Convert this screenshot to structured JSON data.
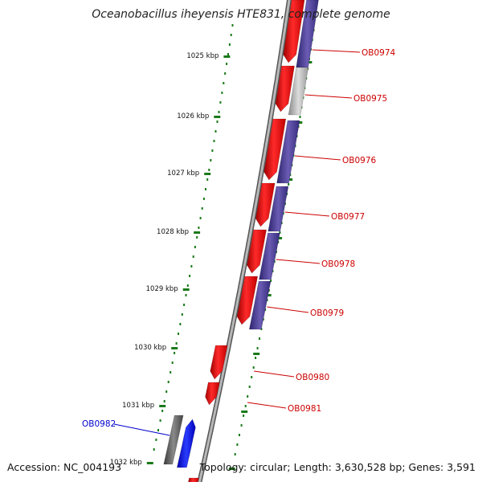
{
  "title": "Oceanobacillus iheyensis HTE831, complete genome",
  "accession": "Accession: NC_004193",
  "summary": "Topology: circular; Length: 3,630,528 bp; Genes: 3,591",
  "colors": {
    "forward_gene": "#ff0000",
    "reverse_gene": "#4b3f8e",
    "highlight_gene": "#0000ff",
    "grey_gene": "#c0c0c0",
    "dark_gene": "#666666",
    "backbone": "#777777",
    "tick": "#1a7a1a",
    "label_red": "#cc0000",
    "label_blue": "#0000cc"
  },
  "ticks": [
    {
      "label": "1025 kbp"
    },
    {
      "label": "1026 kbp"
    },
    {
      "label": "1027 kbp"
    },
    {
      "label": "1028 kbp"
    },
    {
      "label": "1029 kbp"
    },
    {
      "label": "1030 kbp"
    },
    {
      "label": "1031 kbp"
    },
    {
      "label": "1032 kbp"
    }
  ],
  "genes": [
    {
      "label": "OB0974"
    },
    {
      "label": "OB0975"
    },
    {
      "label": "OB0976"
    },
    {
      "label": "OB0977"
    },
    {
      "label": "OB0978"
    },
    {
      "label": "OB0979"
    },
    {
      "label": "OB0980"
    },
    {
      "label": "OB0981"
    },
    {
      "label": "OB0982"
    }
  ]
}
